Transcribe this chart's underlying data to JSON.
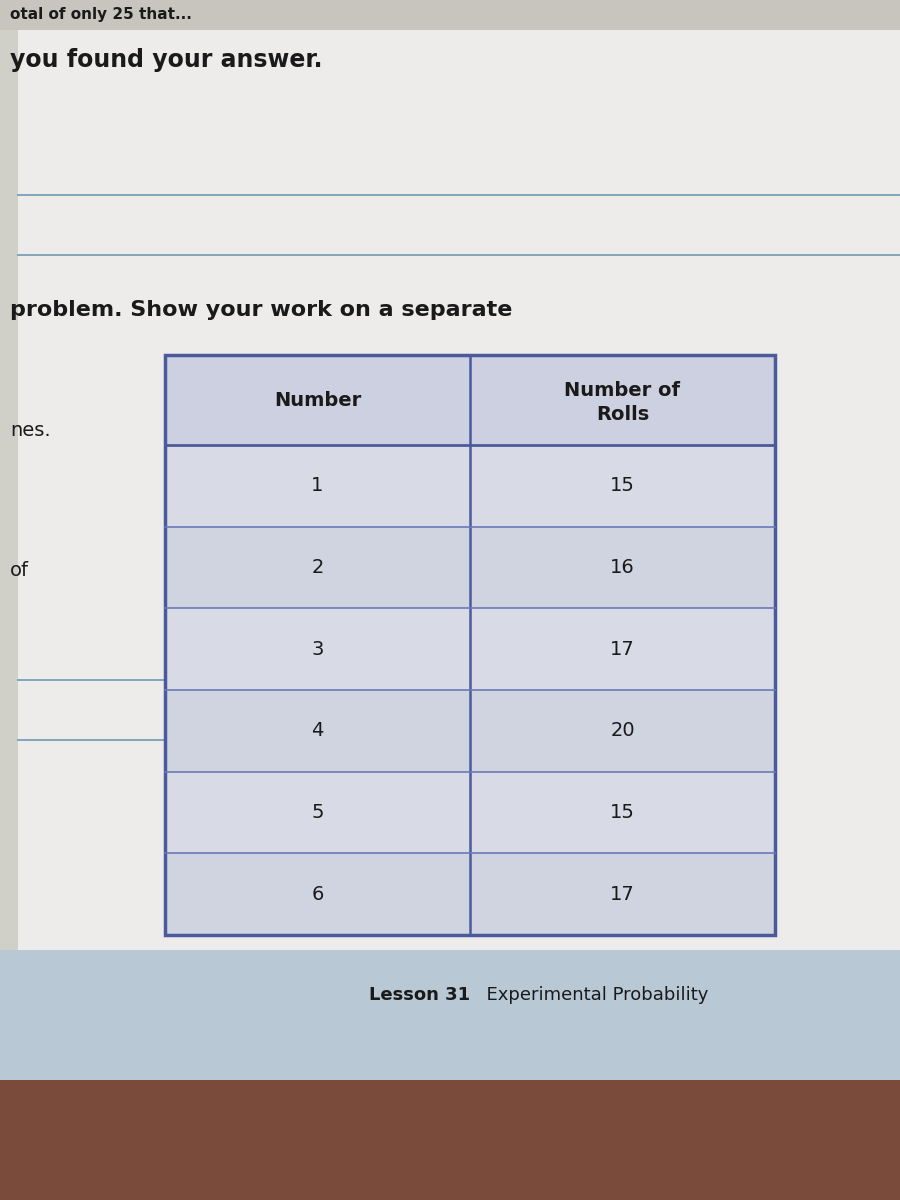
{
  "bg_color_paper": "#edecea",
  "bg_color_blue_gray": "#b8c8d5",
  "bg_color_wood": "#7a4a3a",
  "text_top": "you found your answer.",
  "text_problem": "problem. Show your work on a separate",
  "text_left1": "nes.",
  "text_left2": "of",
  "footer_bold": "Lesson 31",
  "footer_regular": "  Experimental Probability",
  "col1_header": "Number",
  "col2_header_line1": "Number of",
  "col2_header_line2": "Rolls",
  "table_numbers": [
    1,
    2,
    3,
    4,
    5,
    6
  ],
  "table_rolls": [
    15,
    16,
    17,
    20,
    15,
    17
  ],
  "table_border_color": "#4a5a9a",
  "table_inner_line_color": "#6a7aba",
  "table_bg": "#dcdde8",
  "table_header_bg": "#cdd0e0",
  "line_color": "#5b8fa8",
  "font_color": "#1a1a1a",
  "left_strip_color": "#d0cfc8",
  "top_cut_color": "#c8c5be"
}
